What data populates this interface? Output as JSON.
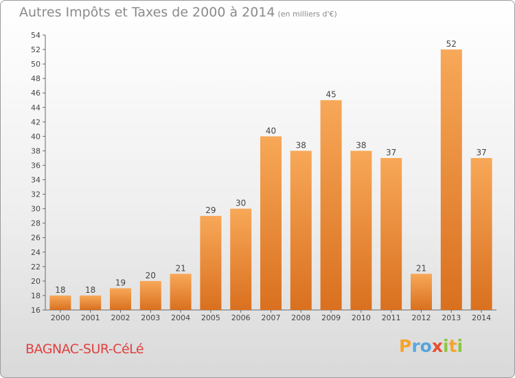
{
  "title": "Autres Impôts et Taxes de 2000 à 2014",
  "subtitle": "(en milliers d'€)",
  "city": "BAGNAC-SUR-CéLé",
  "logo_text": "Proxiti",
  "colors": {
    "bar_top": "#f7a858",
    "bar_bottom": "#d9701f",
    "title": "#8a8a8a",
    "city": "#e0403f"
  },
  "chart_data": {
    "type": "bar",
    "title": "Autres Impôts et Taxes de 2000 à 2014",
    "subtitle": "(en milliers d'€)",
    "categories": [
      "2000",
      "2001",
      "2002",
      "2003",
      "2004",
      "2005",
      "2006",
      "2007",
      "2008",
      "2009",
      "2010",
      "2011",
      "2012",
      "2013",
      "2014"
    ],
    "values": [
      18,
      18,
      19,
      20,
      21,
      29,
      30,
      40,
      38,
      45,
      38,
      37,
      21,
      52,
      37
    ],
    "ylim": [
      16,
      54
    ],
    "yticks": [
      16,
      18,
      20,
      22,
      24,
      26,
      28,
      30,
      32,
      34,
      36,
      38,
      40,
      42,
      44,
      46,
      48,
      50,
      52,
      54
    ],
    "grid": false,
    "data_labels": true
  }
}
